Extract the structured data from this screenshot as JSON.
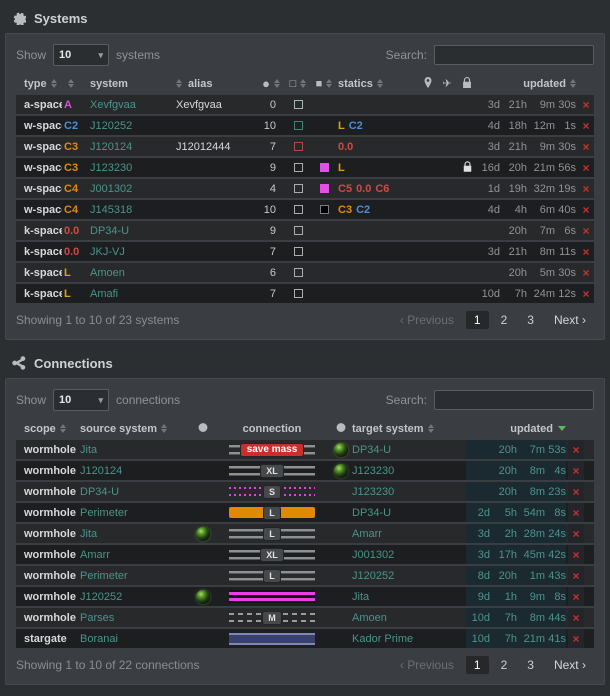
{
  "icons": {
    "circle_glyph": "●",
    "square_outline_glyph": "□",
    "square_fill_glyph": "■",
    "plane_glyph": "✈",
    "close_glyph": "×",
    "select_caret": "▾"
  },
  "colors": {
    "teal_link": "#4a948c",
    "danger_red": "#c9302c",
    "updated_highlight_bg": "#1b2930",
    "sorted_caret_green": "#5cb85c"
  },
  "systems": {
    "title": "Systems",
    "controls": {
      "show_label": "Show",
      "show_value": "10",
      "items_label": "systems",
      "search_label": "Search:",
      "search_value": ""
    },
    "headers": {
      "type": "type",
      "system": "system",
      "alias": "alias",
      "statics": "statics",
      "updated": "updated"
    },
    "rows": [
      {
        "type": "a-space",
        "sec": "A",
        "sec_color": "#d34fd3",
        "system": "Xevfgvaa",
        "alias": "Xevfgvaa",
        "count": "0",
        "box": "#a9b7b4",
        "fill": null,
        "statics": [],
        "lock": false,
        "updated": [
          "3d",
          "21h",
          "9m",
          "30s"
        ]
      },
      {
        "type": "w-space",
        "sec": "C2",
        "sec_color": "#4a8fd4",
        "system": "J120252",
        "alias": "",
        "count": "10",
        "box": "#3e8577",
        "fill": null,
        "statics": [
          {
            "t": "L",
            "c": "#e0a30d"
          },
          {
            "t": "C2",
            "c": "#4a8fd4"
          }
        ],
        "lock": false,
        "updated": [
          "4d",
          "18h",
          "12m",
          "1s"
        ]
      },
      {
        "type": "w-space",
        "sec": "C3",
        "sec_color": "#e28a0d",
        "system": "J120124",
        "alias": "J12012444",
        "count": "7",
        "box": "#b04a42",
        "fill": null,
        "statics": [
          {
            "t": "0.0",
            "c": "#cf4a45"
          }
        ],
        "lock": false,
        "updated": [
          "3d",
          "21h",
          "9m",
          "30s"
        ]
      },
      {
        "type": "w-space",
        "sec": "C3",
        "sec_color": "#e28a0d",
        "system": "J123230",
        "alias": "",
        "count": "9",
        "box": "#a9adb0",
        "fill": "#e44fe4",
        "statics": [
          {
            "t": "L",
            "c": "#e0a30d"
          }
        ],
        "lock": true,
        "updated": [
          "16d",
          "20h",
          "21m",
          "56s"
        ]
      },
      {
        "type": "w-space",
        "sec": "C4",
        "sec_color": "#e28a0d",
        "system": "J001302",
        "alias": "",
        "count": "4",
        "box": "#a9adb0",
        "fill": "#e44fe4",
        "statics": [
          {
            "t": "C5",
            "c": "#cf4a45"
          },
          {
            "t": "0.0",
            "c": "#cf4a45"
          },
          {
            "t": "C6",
            "c": "#cf4a45"
          }
        ],
        "lock": false,
        "updated": [
          "1d",
          "19h",
          "32m",
          "19s"
        ]
      },
      {
        "type": "w-space",
        "sec": "C4",
        "sec_color": "#e28a0d",
        "system": "J145318",
        "alias": "",
        "count": "10",
        "box": "#a9adb0",
        "fill": "#000000",
        "statics": [
          {
            "t": "C3",
            "c": "#e28a0d"
          },
          {
            "t": "C2",
            "c": "#4a8fd4"
          }
        ],
        "lock": false,
        "updated": [
          "4d",
          "4h",
          "6m",
          "40s"
        ]
      },
      {
        "type": "k-space",
        "sec": "0.0",
        "sec_color": "#cf4a45",
        "system": "DP34-U",
        "alias": "",
        "count": "9",
        "box": "#a9adb0",
        "fill": null,
        "statics": [],
        "lock": false,
        "updated": [
          "",
          "20h",
          "7m",
          "6s"
        ]
      },
      {
        "type": "k-space",
        "sec": "0.0",
        "sec_color": "#cf4a45",
        "system": "JKJ-VJ",
        "alias": "",
        "count": "7",
        "box": "#a9adb0",
        "fill": null,
        "statics": [],
        "lock": false,
        "updated": [
          "3d",
          "21h",
          "8m",
          "11s"
        ]
      },
      {
        "type": "k-space",
        "sec": "L",
        "sec_color": "#e0a30d",
        "system": "Amoen",
        "alias": "",
        "count": "6",
        "box": "#a9adb0",
        "fill": null,
        "statics": [],
        "lock": false,
        "updated": [
          "",
          "20h",
          "5m",
          "30s"
        ]
      },
      {
        "type": "k-space",
        "sec": "L",
        "sec_color": "#e0a30d",
        "system": "Amafi",
        "alias": "",
        "count": "7",
        "box": "#a9adb0",
        "fill": null,
        "statics": [],
        "lock": false,
        "updated": [
          "10d",
          "7h",
          "24m",
          "12s"
        ]
      }
    ],
    "footer_text": "Showing 1 to 10 of 23 systems",
    "pagination": {
      "prev_icon": "‹",
      "previous": "Previous",
      "pages": [
        "1",
        "2",
        "3"
      ],
      "active_page": "1",
      "next": "Next",
      "next_icon": "›"
    }
  },
  "connections": {
    "title": "Connections",
    "controls": {
      "show_label": "Show",
      "show_value": "10",
      "items_label": "connections",
      "search_label": "Search:",
      "search_value": ""
    },
    "headers": {
      "scope": "scope",
      "source": "source system",
      "connection": "connection",
      "target": "target system",
      "updated": "updated"
    },
    "rows": [
      {
        "scope": "wormhole",
        "source": "Jita",
        "src_orb": false,
        "bar": "lines",
        "badge": "save mass",
        "badge_style": "danger",
        "tgt_orb": true,
        "target": "DP34-U",
        "updated": [
          "",
          "20h",
          "7m",
          "53s"
        ]
      },
      {
        "scope": "wormhole",
        "source": "J120124",
        "src_orb": false,
        "bar": "lines",
        "badge": "XL",
        "badge_style": "default",
        "tgt_orb": true,
        "target": "J123230",
        "updated": [
          "",
          "20h",
          "8m",
          "4s"
        ]
      },
      {
        "scope": "wormhole",
        "source": "DP34-U",
        "src_orb": false,
        "bar": "dotted-magenta",
        "badge": "S",
        "badge_style": "default",
        "tgt_orb": false,
        "target": "J123230",
        "updated": [
          "",
          "20h",
          "8m",
          "23s"
        ]
      },
      {
        "scope": "wormhole",
        "source": "Perimeter",
        "src_orb": false,
        "bar": "solid-orange",
        "badge": "L",
        "badge_style": "default",
        "tgt_orb": false,
        "target": "DP34-U",
        "updated": [
          "2d",
          "5h",
          "54m",
          "8s"
        ]
      },
      {
        "scope": "wormhole",
        "source": "Jita",
        "src_orb": true,
        "bar": "lines",
        "badge": "L",
        "badge_style": "default",
        "tgt_orb": false,
        "target": "Amarr",
        "updated": [
          "3d",
          "2h",
          "28m",
          "24s"
        ]
      },
      {
        "scope": "wormhole",
        "source": "Amarr",
        "src_orb": false,
        "bar": "lines",
        "badge": "XL",
        "badge_style": "default",
        "tgt_orb": false,
        "target": "J001302",
        "updated": [
          "3d",
          "17h",
          "45m",
          "42s"
        ]
      },
      {
        "scope": "wormhole",
        "source": "Perimeter",
        "src_orb": false,
        "bar": "lines",
        "badge": "L",
        "badge_style": "default",
        "tgt_orb": false,
        "target": "J120252",
        "updated": [
          "8d",
          "20h",
          "1m",
          "43s"
        ]
      },
      {
        "scope": "wormhole",
        "source": "J120252",
        "src_orb": true,
        "bar": "solid-magenta",
        "badge": "",
        "badge_style": "",
        "tgt_orb": false,
        "target": "Jita",
        "updated": [
          "9d",
          "1h",
          "9m",
          "8s"
        ]
      },
      {
        "scope": "wormhole",
        "source": "Parses",
        "src_orb": false,
        "bar": "dashed-grey",
        "badge": "M",
        "badge_style": "default",
        "tgt_orb": false,
        "target": "Amoen",
        "updated": [
          "10d",
          "7h",
          "8m",
          "44s"
        ]
      },
      {
        "scope": "stargate",
        "source": "Boranai",
        "src_orb": false,
        "bar": "solid-blue",
        "badge": "",
        "badge_style": "",
        "tgt_orb": false,
        "target": "Kador Prime",
        "updated": [
          "10d",
          "7h",
          "21m",
          "41s"
        ]
      }
    ],
    "footer_text": "Showing 1 to 10 of 22 connections",
    "pagination": {
      "prev_icon": "‹",
      "previous": "Previous",
      "pages": [
        "1",
        "2",
        "3"
      ],
      "active_page": "1",
      "next": "Next",
      "next_icon": "›"
    }
  }
}
